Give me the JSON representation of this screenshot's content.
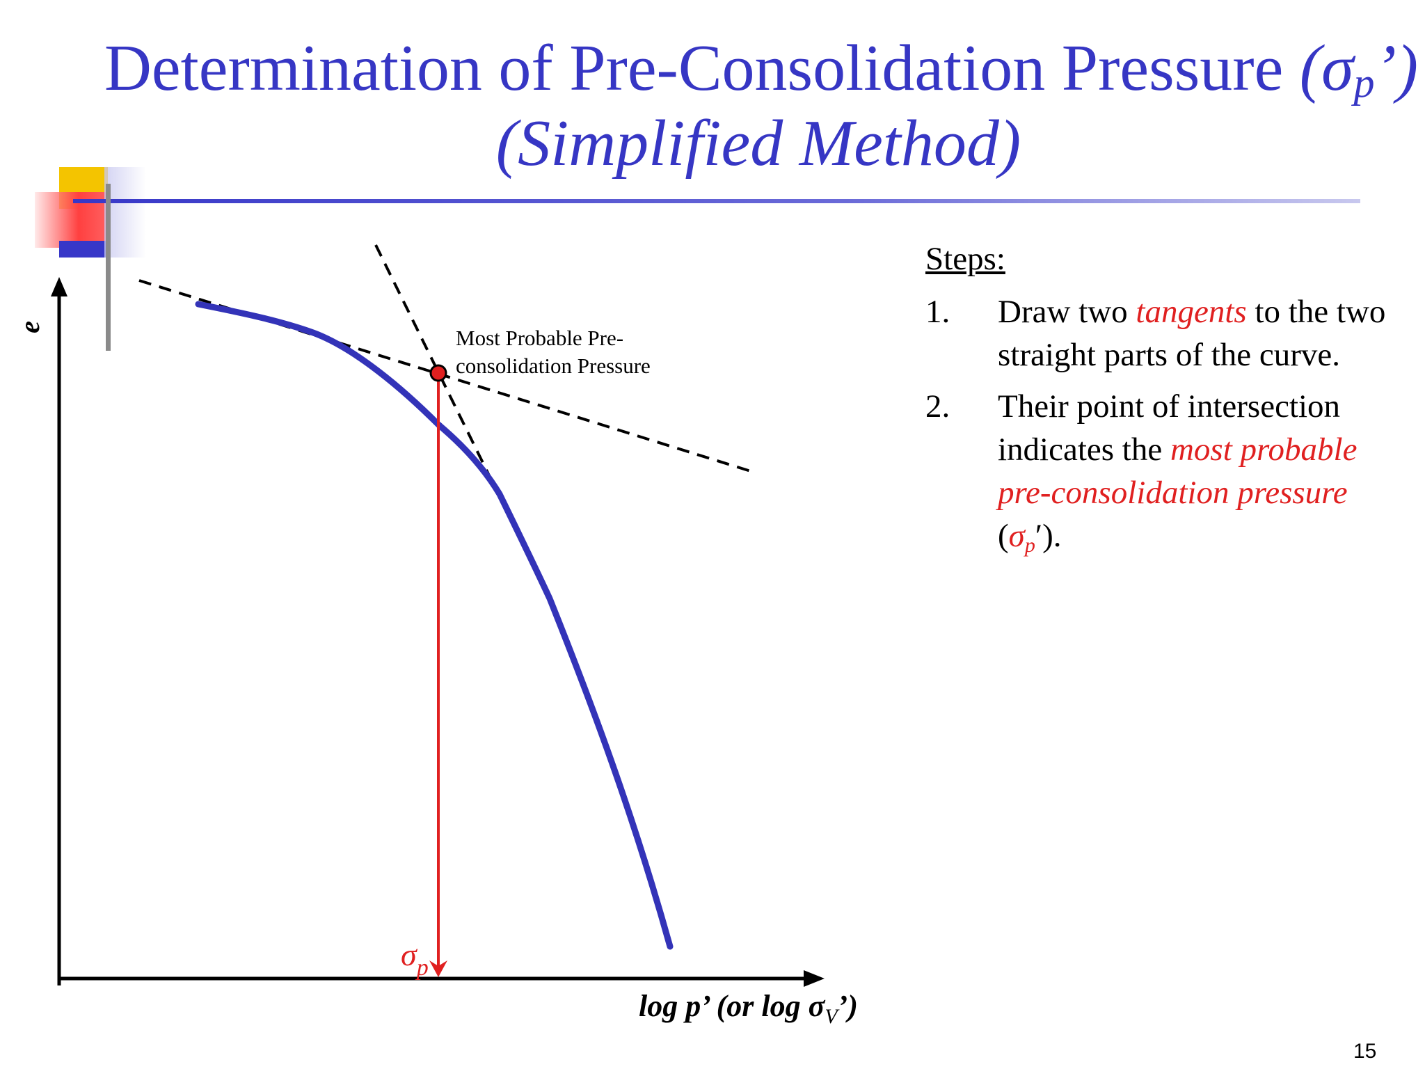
{
  "title": {
    "line1_main": "Determination of Pre-Consolidation Pressure",
    "line1_symbol": "(σ",
    "line1_sub": "p",
    "line1_end": "’)",
    "line2": "(Simplified Method)"
  },
  "diagram": {
    "y_axis_label": "e",
    "x_axis_label_main": "log p’ (or log σ",
    "x_axis_label_sub": "V",
    "x_axis_label_end": "’)",
    "annotation_line1": "Most Probable Pre-",
    "annotation_line2": "consolidation Pressure",
    "sigma_symbol": "σ",
    "sigma_sub": "p",
    "colors": {
      "curve": "#3333b8",
      "marker": "#e02020",
      "tangent": "#000000",
      "axis": "#000000"
    }
  },
  "steps": {
    "heading": "Steps:",
    "step1": {
      "num": "1.",
      "before": "Draw two ",
      "highlight": "tangents",
      "after": " to the two straight parts of the curve."
    },
    "step2": {
      "num": "2.",
      "before": "Their point of intersection indicates the ",
      "highlight": "most probable pre-consolidation pressure",
      "after_open": " (",
      "symbol": "σ",
      "sub": "p",
      "after_close": "′)."
    }
  },
  "page_number": "15",
  "colors": {
    "title": "#3636c4",
    "accent_red": "#e02020",
    "deco_yellow": "#f4c400",
    "deco_blue": "#3737c8"
  }
}
